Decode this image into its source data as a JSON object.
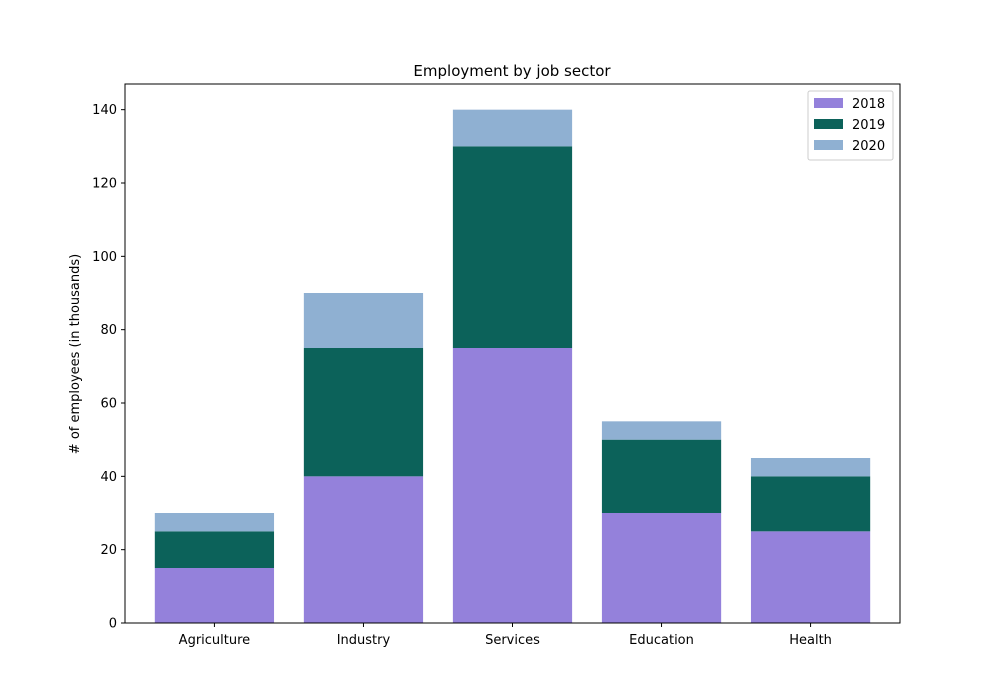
{
  "chart_data": {
    "type": "bar",
    "stacked": true,
    "title": "Employment by job sector",
    "xlabel": "",
    "ylabel": "# of employees (in thousands)",
    "categories": [
      "Agriculture",
      "Industry",
      "Services",
      "Education",
      "Health"
    ],
    "series": [
      {
        "name": "2018",
        "color": "#9481db",
        "values": [
          15,
          40,
          75,
          30,
          25
        ]
      },
      {
        "name": "2019",
        "color": "#0c625a",
        "values": [
          10,
          35,
          55,
          20,
          15
        ]
      },
      {
        "name": "2020",
        "color": "#8fb0d2",
        "values": [
          5,
          15,
          10,
          5,
          5
        ]
      }
    ],
    "ylim": [
      0,
      147
    ],
    "yticks": [
      0,
      20,
      40,
      60,
      80,
      100,
      120,
      140
    ],
    "grid": false,
    "legend": "top-right"
  }
}
